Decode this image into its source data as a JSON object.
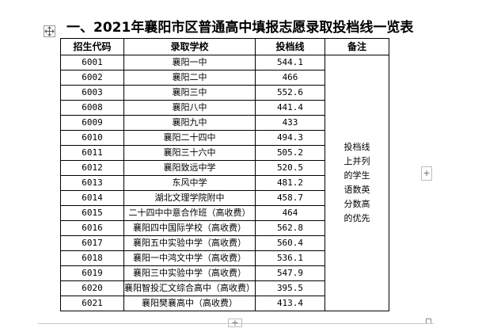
{
  "title": "一、2021年襄阳市区普通高中填报志愿录取投档线一览表",
  "table": {
    "headers": {
      "code": "招生代码",
      "school": "录取学校",
      "score": "投档线",
      "note": "备注"
    },
    "note_lines": [
      "投档线",
      "上并列",
      "的学生",
      "语数英",
      "分数高",
      "的优先"
    ],
    "rows": [
      {
        "code": "6001",
        "school": "襄阳一中",
        "score": "544.1"
      },
      {
        "code": "6002",
        "school": "襄阳二中",
        "score": "466"
      },
      {
        "code": "6003",
        "school": "襄阳三中",
        "score": "552.6"
      },
      {
        "code": "6008",
        "school": "襄阳八中",
        "score": "441.4"
      },
      {
        "code": "6009",
        "school": "襄阳九中",
        "score": "433"
      },
      {
        "code": "6010",
        "school": "襄阳二十四中",
        "score": "494.3"
      },
      {
        "code": "6011",
        "school": "襄阳三十六中",
        "score": "505.2"
      },
      {
        "code": "6012",
        "school": "襄阳致远中学",
        "score": "520.5"
      },
      {
        "code": "6013",
        "school": "东风中学",
        "score": "481.2"
      },
      {
        "code": "6014",
        "school": "湖北文理学院附中",
        "score": "458.7"
      },
      {
        "code": "6015",
        "school": "二十四中中意合作班（高收费）",
        "score": "464"
      },
      {
        "code": "6016",
        "school": "襄阳四中国际学校（高收费）",
        "score": "562.8"
      },
      {
        "code": "6017",
        "school": "襄阳五中实验中学（高收费）",
        "score": "560.4"
      },
      {
        "code": "6018",
        "school": "襄阳一中鸿文中学（高收费）",
        "score": "536.1"
      },
      {
        "code": "6019",
        "school": "襄阳三中实验中学（高收费）",
        "score": "547.9"
      },
      {
        "code": "6020",
        "school": "襄阳智投汇文综合高中（高收费）",
        "score": "395.5"
      },
      {
        "code": "6021",
        "school": "襄阳樊襄高中（高收费）",
        "score": "413.4"
      }
    ]
  },
  "controls": {
    "add_row_symbol": "+",
    "add_col_symbol": "+"
  }
}
